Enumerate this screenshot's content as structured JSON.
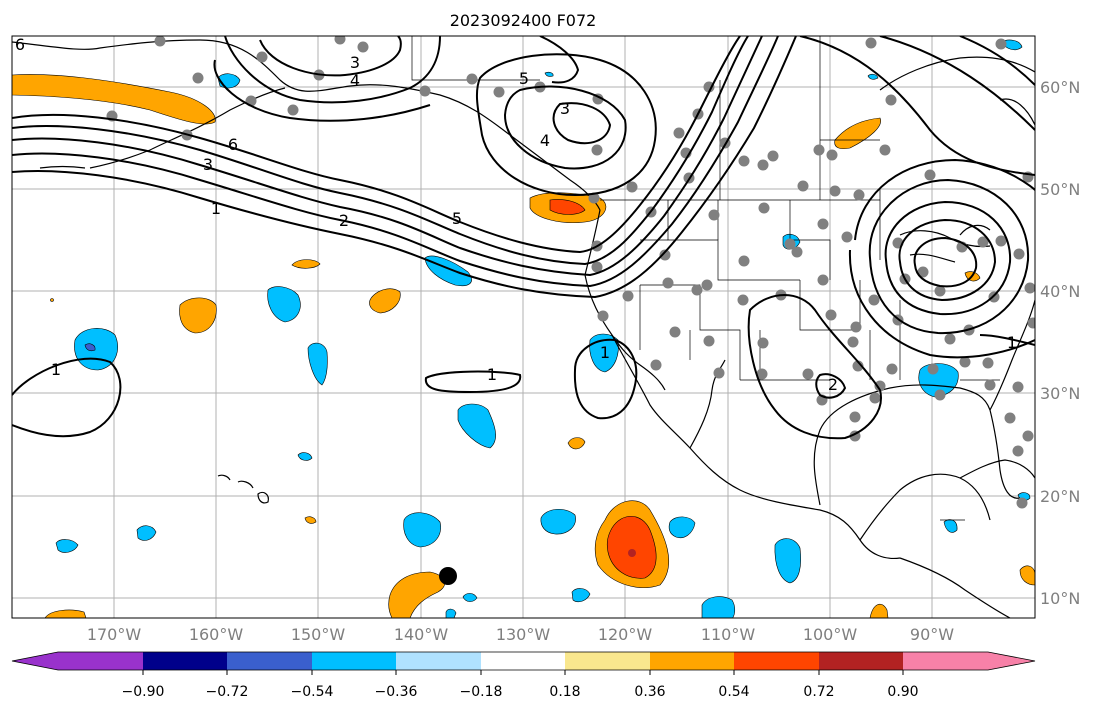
{
  "title": "2023092400 F072",
  "map": {
    "lat_labels": [
      "60°N",
      "50°N",
      "40°N",
      "30°N",
      "20°N",
      "10°N"
    ],
    "lon_labels": [
      "170°W",
      "160°W",
      "150°W",
      "140°W",
      "130°W",
      "120°W",
      "110°W",
      "100°W",
      "90°W"
    ],
    "gridline_color": "#b0b0b0",
    "contour_color": "#000000",
    "station_dot_color": "#808080"
  },
  "colorbar": {
    "tick_labels": [
      "−0.90",
      "−0.72",
      "−0.54",
      "−0.36",
      "−0.18",
      "0.18",
      "0.36",
      "0.54",
      "0.72",
      "0.90"
    ],
    "colors": [
      "#9932cc",
      "#00008b",
      "#3a5fcd",
      "#00bfff",
      "#b0e2ff",
      "#ffffff",
      "#f9e78e",
      "#ffa500",
      "#ff4500",
      "#b22222",
      "#f781a8"
    ]
  },
  "contours": [
    {
      "label": "6"
    },
    {
      "label": "3"
    },
    {
      "label": "4"
    },
    {
      "label": "5"
    },
    {
      "label": "3"
    },
    {
      "label": "4"
    },
    {
      "label": "6"
    },
    {
      "label": "3"
    },
    {
      "label": "1"
    },
    {
      "label": "2"
    },
    {
      "label": "5"
    },
    {
      "label": "1"
    },
    {
      "label": "1"
    },
    {
      "label": "1"
    },
    {
      "label": "2"
    },
    {
      "label": "1"
    }
  ]
}
